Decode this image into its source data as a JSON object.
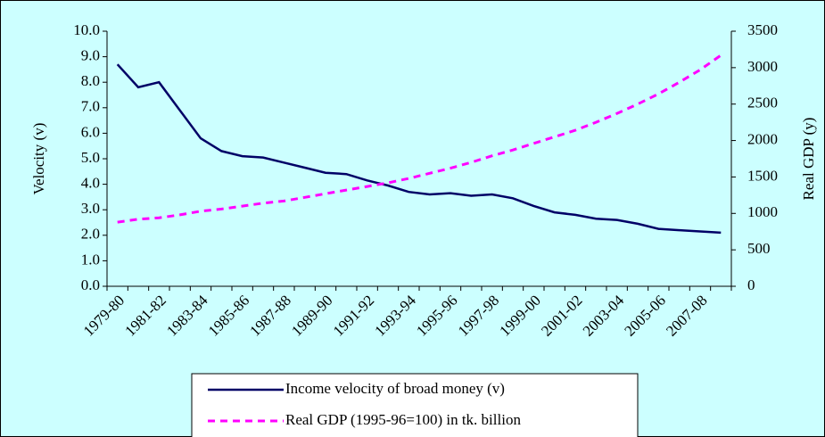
{
  "chart_data": {
    "type": "line",
    "y_label": "Velocity (v)",
    "y2_label": "Real GDP (y)",
    "categories": [
      "1979-80",
      null,
      "1981-82",
      null,
      "1983-84",
      null,
      "1985-86",
      null,
      "1987-88",
      null,
      "1989-90",
      null,
      "1991-92",
      null,
      "1993-94",
      null,
      "1995-96",
      null,
      "1997-98",
      null,
      "1999-00",
      null,
      "2001-02",
      null,
      "2003-04",
      null,
      "2005-06",
      null,
      "2007-08",
      null
    ],
    "series": [
      {
        "name": "Income velocity of broad money (v)",
        "color": "#000066",
        "dash": false,
        "axis": "y",
        "values": [
          8.7,
          7.8,
          8.0,
          6.9,
          5.8,
          5.3,
          5.1,
          5.05,
          4.85,
          4.65,
          4.45,
          4.4,
          4.15,
          3.95,
          3.7,
          3.6,
          3.65,
          3.55,
          3.6,
          3.45,
          3.15,
          2.9,
          2.8,
          2.65,
          2.6,
          2.45,
          2.25,
          2.2,
          2.15,
          2.1
        ]
      },
      {
        "name": "Real GDP (1995-96=100) in tk. billion",
        "color": "#ff00ff",
        "dash": true,
        "axis": "y2",
        "values": [
          880,
          920,
          940,
          980,
          1030,
          1060,
          1100,
          1140,
          1170,
          1220,
          1270,
          1320,
          1370,
          1420,
          1480,
          1550,
          1620,
          1700,
          1790,
          1870,
          1960,
          2050,
          2140,
          2250,
          2370,
          2500,
          2640,
          2800,
          2970,
          3170
        ]
      }
    ],
    "ylim": [
      0,
      10
    ],
    "yticks": [
      {
        "value": 0,
        "label": "0.0"
      },
      {
        "value": 1,
        "label": "1.0"
      },
      {
        "value": 2,
        "label": "2.0"
      },
      {
        "value": 3,
        "label": "3.0"
      },
      {
        "value": 4,
        "label": "4.0"
      },
      {
        "value": 5,
        "label": "5.0"
      },
      {
        "value": 6,
        "label": "6.0"
      },
      {
        "value": 7,
        "label": "7.0"
      },
      {
        "value": 8,
        "label": "8.0"
      },
      {
        "value": 9,
        "label": "9.0"
      },
      {
        "value": 10,
        "label": "10.0"
      }
    ],
    "y2lim": [
      0,
      3500
    ],
    "y2ticks": [
      0,
      500,
      1000,
      1500,
      2000,
      2500,
      3000,
      3500
    ],
    "background": "#ccffff"
  }
}
